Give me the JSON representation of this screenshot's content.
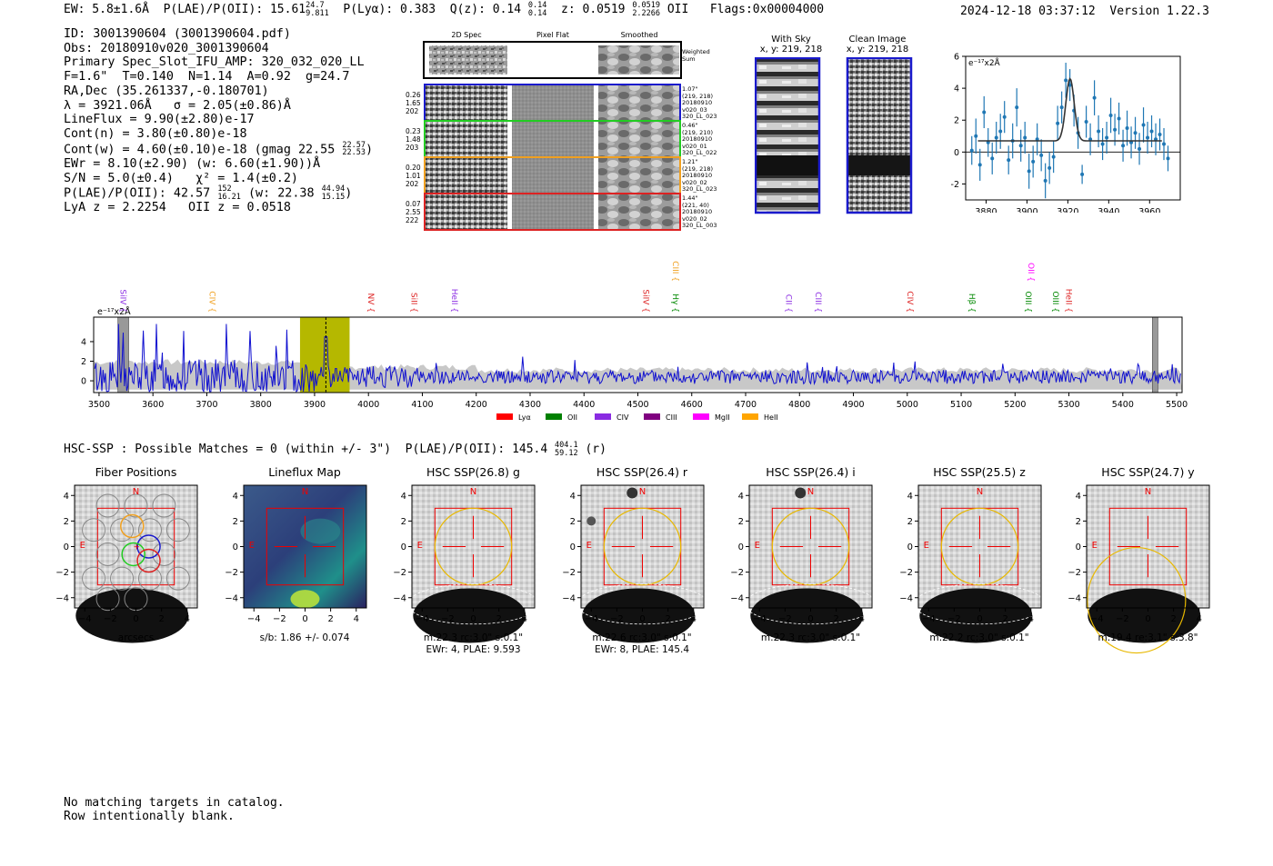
{
  "header": {
    "ew": "EW: 5.8±1.6Å",
    "plae_label": "P(LAE)/P(OII): 15.61",
    "plae_hi": "24.7",
    "plae_lo": "9.811",
    "plya": "P(Lyα): 0.383",
    "qz_label": "Q(z): 0.14",
    "qz_hi": "0.14",
    "qz_lo": "0.14",
    "z_label": "z: 0.0519",
    "z_hi": "0.0519",
    "z_lo": "2.2266",
    "z_tag": "OII",
    "flags": "Flags:0x00004000",
    "datetime": "2024-12-18 03:37:12",
    "version": "Version 1.22.3"
  },
  "info": {
    "id": "ID: 3001390604 (3001390604.pdf)",
    "obs": "Obs: 20180910v020_3001390604",
    "slot": "Primary Spec_Slot_IFU_AMP: 320_032_020_LL",
    "fline": "F=1.6\"  T=0.140  N=1.14  A=0.92  g=24.7",
    "radec": "RA,Dec (35.261337,-0.180701)",
    "lambda_sigma": "λ = 3921.06Å   σ = 2.05(±0.86)Å",
    "lineflux": "LineFlux = 9.90(±2.80)e-17",
    "contn": "Cont(n) = 3.80(±0.80)e-18",
    "contw": "Cont(w) = 4.60(±0.10)e-18 (gmag 22.55",
    "contw_hi": "22.57",
    "contw_lo": "22.53",
    "contw_end": ")",
    "ewr": "EWr = 8.10(±2.90) (w: 6.60(±1.90))Å",
    "sn": "S/N = 5.0(±0.4)   χ² = 1.4(±0.2)",
    "plae": "P(LAE)/P(OII): 42.57",
    "plae_hi": "152",
    "plae_lo": "16.21",
    "plae_w": "(w: 22.38",
    "plae_w_hi": "44.94",
    "plae_w_lo": "15.15",
    "plae_w_end": ")",
    "zline": "LyA z = 2.2254   OII z = 0.0518"
  },
  "cutouts": {
    "col_titles": [
      "2D Spec",
      "Pixel Flat",
      "Smoothed"
    ],
    "weighted_sum": "Weighted Sum",
    "rows": [
      {
        "left": [
          "0.26",
          "1.65",
          "202"
        ],
        "right": [
          "1.07\"",
          "(219, 218)",
          "20180910",
          "v020_03",
          "320_LL_023"
        ],
        "color": "#1a1acc"
      },
      {
        "left": [
          "0.23",
          "1.48",
          "203"
        ],
        "right": [
          "0.46\"",
          "(219, 210)",
          "20180910",
          "v020_01",
          "320_LL_022"
        ],
        "color": "#22cc22"
      },
      {
        "left": [
          "0.20",
          "1.01",
          "202"
        ],
        "right": [
          "1.21\"",
          "(219, 218)",
          "20180910",
          "v020_02",
          "320_LL_023"
        ],
        "color": "#f0a020"
      },
      {
        "left": [
          "0.07",
          "2.55",
          "222"
        ],
        "right": [
          "1.44\"",
          "(221, 40)",
          "20180910",
          "v020_02",
          "320_LL_003"
        ],
        "color": "#dd2222"
      }
    ]
  },
  "sky": {
    "with_sky_title": "With Sky",
    "with_sky_coords": "x, y: 219, 218",
    "clean_title": "Clean Image",
    "clean_coords": "x, y: 219, 218"
  },
  "line_fit": {
    "unit_label": "e⁻¹⁷x2Å"
  },
  "full_spectrum": {
    "unit_label": "e⁻¹⁷x2Å",
    "line_labels": [
      {
        "name": "SiIV",
        "wave": 3540,
        "color": "#8a2be2",
        "level": 1
      },
      {
        "name": "CIV",
        "wave": 3705,
        "color": "#f0a020",
        "level": 1
      },
      {
        "name": "NV",
        "wave": 4000,
        "color": "#dd2222",
        "level": 1
      },
      {
        "name": "SiII",
        "wave": 4080,
        "color": "#dd2222",
        "level": 1
      },
      {
        "name": "HeII",
        "wave": 4155,
        "color": "#8a2be2",
        "level": 1
      },
      {
        "name": "SiIV",
        "wave": 4510,
        "color": "#dd2222",
        "level": 1
      },
      {
        "name": "CIII",
        "wave": 4565,
        "color": "#f0a020",
        "level": 0
      },
      {
        "name": "Hγ",
        "wave": 4565,
        "color": "#008800",
        "level": 1
      },
      {
        "name": "CII",
        "wave": 4775,
        "color": "#8a2be2",
        "level": 1
      },
      {
        "name": "CIII",
        "wave": 4830,
        "color": "#8a2be2",
        "level": 1
      },
      {
        "name": "CIV",
        "wave": 5000,
        "color": "#dd2222",
        "level": 1
      },
      {
        "name": "Hβ",
        "wave": 5115,
        "color": "#008800",
        "level": 1
      },
      {
        "name": "OII",
        "wave": 5225,
        "color": "#ff00ff",
        "level": 0
      },
      {
        "name": "OIII",
        "wave": 5220,
        "color": "#008800",
        "level": 1
      },
      {
        "name": "OIII",
        "wave": 5270,
        "color": "#008800",
        "level": 1
      },
      {
        "name": "HeII",
        "wave": 5295,
        "color": "#dd2222",
        "level": 1
      }
    ],
    "legend": [
      {
        "name": "Lyα",
        "color": "#ff0000"
      },
      {
        "name": "OII",
        "color": "#008000"
      },
      {
        "name": "CIV",
        "color": "#8a2be2"
      },
      {
        "name": "CIII",
        "color": "#800080"
      },
      {
        "name": "MgII",
        "color": "#ff00ff"
      },
      {
        "name": "HeII",
        "color": "#ffa500"
      }
    ]
  },
  "hsc": {
    "summary": "HSC-SSP : Possible Matches = 0 (within +/- 3\")  P(LAE)/P(OII): 145.4",
    "summary_hi": "404.1",
    "summary_lo": "59.12",
    "summary_band": "(r)",
    "compass_n": "N",
    "compass_e": "E",
    "panels": [
      {
        "title": "Fiber Positions",
        "sub1": "arcsecs",
        "sub2": ""
      },
      {
        "title": "Lineflux Map",
        "sub1": "s/b: 1.86 +/- 0.074",
        "sub2": ""
      },
      {
        "title": "HSC SSP(26.8) g",
        "sub1": "m:22.3 rc:3.0\"  s:0.1\"",
        "sub2": "EWr: 4, PLAE: 9.593"
      },
      {
        "title": "HSC SSP(26.4) r",
        "sub1": "m:22.6 rc:3.0\"  s:0.1\"",
        "sub2": "EWr: 8, PLAE: 145.4"
      },
      {
        "title": "HSC SSP(26.4) i",
        "sub1": "m:22.3 rc:3.0\"  s:0.1\"",
        "sub2": ""
      },
      {
        "title": "HSC SSP(25.5) z",
        "sub1": "m:22.2 rc:3.0\"  s:0.1\"",
        "sub2": ""
      },
      {
        "title": "HSC SSP(24.7) y",
        "sub1": "m:19.4  re:3.1\"  s:3.8\"",
        "sub2": ""
      }
    ]
  },
  "notes": {
    "line1": "No matching targets in catalog.",
    "line2": "Row intentionally blank."
  },
  "chart_data": [
    {
      "type": "scatter",
      "title": "Line fit",
      "xlabel": "",
      "ylabel": "e-17 x2A",
      "xlim": [
        3870,
        3975
      ],
      "ylim": [
        -3,
        6
      ],
      "x_ticks": [
        3880,
        3900,
        3920,
        3940,
        3960
      ],
      "y_ticks": [
        -2,
        0,
        2,
        4,
        6
      ],
      "points": [
        {
          "x": 3873,
          "y": 0.1,
          "err": 0.9
        },
        {
          "x": 3875,
          "y": 1.0,
          "err": 1.1
        },
        {
          "x": 3877,
          "y": -0.8,
          "err": 1.0
        },
        {
          "x": 3879,
          "y": 2.5,
          "err": 1.0
        },
        {
          "x": 3881,
          "y": 0.6,
          "err": 0.9
        },
        {
          "x": 3883,
          "y": -0.4,
          "err": 1.0
        },
        {
          "x": 3885,
          "y": 0.9,
          "err": 1.0
        },
        {
          "x": 3887,
          "y": 1.3,
          "err": 1.1
        },
        {
          "x": 3889,
          "y": 2.2,
          "err": 1.0
        },
        {
          "x": 3891,
          "y": -0.5,
          "err": 0.9
        },
        {
          "x": 3893,
          "y": 0.7,
          "err": 1.1
        },
        {
          "x": 3895,
          "y": 2.8,
          "err": 1.2
        },
        {
          "x": 3897,
          "y": 0.4,
          "err": 1.0
        },
        {
          "x": 3899,
          "y": 0.9,
          "err": 1.0
        },
        {
          "x": 3901,
          "y": -1.2,
          "err": 1.1
        },
        {
          "x": 3903,
          "y": -0.6,
          "err": 1.0
        },
        {
          "x": 3905,
          "y": 0.8,
          "err": 1.0
        },
        {
          "x": 3907,
          "y": -0.2,
          "err": 1.0
        },
        {
          "x": 3909,
          "y": -1.8,
          "err": 1.1
        },
        {
          "x": 3911,
          "y": -1.0,
          "err": 1.0
        },
        {
          "x": 3913,
          "y": -0.3,
          "err": 1.0
        },
        {
          "x": 3915,
          "y": 1.8,
          "err": 1.1
        },
        {
          "x": 3917,
          "y": 2.8,
          "err": 1.0
        },
        {
          "x": 3919,
          "y": 4.5,
          "err": 1.1
        },
        {
          "x": 3921,
          "y": 4.2,
          "err": 1.0
        },
        {
          "x": 3923,
          "y": 2.6,
          "err": 1.0
        },
        {
          "x": 3925,
          "y": 1.2,
          "err": 1.0
        },
        {
          "x": 3927,
          "y": -1.4,
          "err": 0.6
        },
        {
          "x": 3929,
          "y": 1.9,
          "err": 1.0
        },
        {
          "x": 3931,
          "y": 0.8,
          "err": 1.0
        },
        {
          "x": 3933,
          "y": 3.4,
          "err": 1.1
        },
        {
          "x": 3935,
          "y": 1.3,
          "err": 1.0
        },
        {
          "x": 3937,
          "y": 0.5,
          "err": 1.0
        },
        {
          "x": 3939,
          "y": 0.9,
          "err": 1.0
        },
        {
          "x": 3941,
          "y": 2.3,
          "err": 1.1
        },
        {
          "x": 3943,
          "y": 1.4,
          "err": 1.0
        },
        {
          "x": 3945,
          "y": 2.1,
          "err": 1.0
        },
        {
          "x": 3947,
          "y": 0.4,
          "err": 1.0
        },
        {
          "x": 3949,
          "y": 1.5,
          "err": 1.1
        },
        {
          "x": 3951,
          "y": 0.6,
          "err": 1.0
        },
        {
          "x": 3953,
          "y": 1.2,
          "err": 1.0
        },
        {
          "x": 3955,
          "y": 0.2,
          "err": 1.0
        },
        {
          "x": 3957,
          "y": 1.7,
          "err": 1.1
        },
        {
          "x": 3959,
          "y": 0.9,
          "err": 1.0
        },
        {
          "x": 3961,
          "y": 1.3,
          "err": 1.0
        },
        {
          "x": 3963,
          "y": 0.8,
          "err": 1.0
        },
        {
          "x": 3965,
          "y": 1.1,
          "err": 1.0
        },
        {
          "x": 3967,
          "y": 0.5,
          "err": 1.0
        },
        {
          "x": 3969,
          "y": -0.4,
          "err": 0.8
        }
      ],
      "model": {
        "center": 3921.06,
        "sigma": 2.05,
        "amplitude": 3.9,
        "continuum": 0.7
      }
    },
    {
      "type": "line",
      "title": "Full spectrum",
      "xlabel": "",
      "ylabel": "e-17 x2A",
      "xlim": [
        3490,
        5510
      ],
      "ylim": [
        -1.2,
        6.5
      ],
      "x_ticks": [
        3500,
        3600,
        3700,
        3800,
        3900,
        4000,
        4100,
        4200,
        4300,
        4400,
        4500,
        4600,
        4700,
        4800,
        4900,
        5000,
        5100,
        5200,
        5300,
        5400,
        5500
      ],
      "y_ticks": [
        0,
        2,
        4
      ],
      "series_name": "flux",
      "noise_envelope": "gray",
      "highlight_band": [
        3873,
        3965
      ],
      "line_marker": 3921,
      "masked_bands": [
        [
          3535,
          3555
        ],
        [
          5455,
          5465
        ]
      ]
    }
  ]
}
